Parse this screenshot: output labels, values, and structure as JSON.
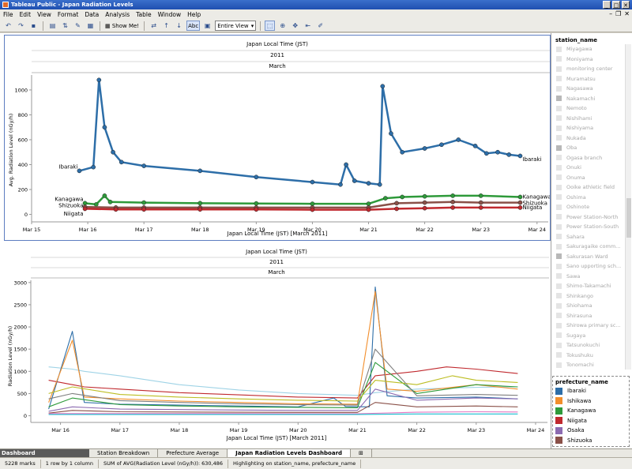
{
  "window": {
    "title": "Tableau Public - Japan Radiation Levels"
  },
  "menu": [
    "File",
    "Edit",
    "View",
    "Format",
    "Data",
    "Analysis",
    "Table",
    "Window",
    "Help"
  ],
  "toolbar": {
    "show_me": "Show Me!",
    "abc": "Abc",
    "fit": "Entire View"
  },
  "top_chart": {
    "header_title": "Japan Local Time (JST)",
    "header_year": "2011",
    "header_month": "March",
    "footer_title": "Japan Local Time (JST) [March 2011]",
    "y_label": "Avg. Radiation Level (nGy/h)"
  },
  "bottom_chart": {
    "header_title": "Japan Local Time (JST)",
    "header_year": "2011",
    "header_month": "March",
    "footer_title": "Japan Local Time (JST) [March 2011]",
    "y_label": "Radiation Level (nGy/h)"
  },
  "chart_data": [
    {
      "type": "line",
      "title": "",
      "xlabel": "Japan Local Time (JST) [March 2011]",
      "ylabel": "Avg. Radiation Level (nGy/h)",
      "x_ticks": [
        "Mar 15",
        "Mar 16",
        "Mar 17",
        "Mar 18",
        "Mar 19",
        "Mar 20",
        "Mar 21",
        "Mar 22",
        "Mar 23",
        "Mar 24"
      ],
      "y_ticks": [
        0,
        200,
        400,
        600,
        800,
        1000
      ],
      "ylim": [
        -60,
        1120
      ],
      "xlim": [
        15.0,
        24.2
      ],
      "grid": false,
      "series": [
        {
          "name": "Ibaraki",
          "color": "#2d6ea8",
          "points": [
            [
              15.85,
              350
            ],
            [
              16.1,
              380
            ],
            [
              16.2,
              1080
            ],
            [
              16.3,
              700
            ],
            [
              16.45,
              500
            ],
            [
              16.6,
              420
            ],
            [
              17,
              390
            ],
            [
              18,
              350
            ],
            [
              19,
              300
            ],
            [
              20,
              260
            ],
            [
              20.5,
              240
            ],
            [
              20.6,
              400
            ],
            [
              20.75,
              270
            ],
            [
              21,
              250
            ],
            [
              21.2,
              240
            ],
            [
              21.25,
              1030
            ],
            [
              21.4,
              650
            ],
            [
              21.6,
              500
            ],
            [
              22,
              530
            ],
            [
              22.3,
              560
            ],
            [
              22.6,
              600
            ],
            [
              22.9,
              550
            ],
            [
              23.1,
              490
            ],
            [
              23.3,
              500
            ],
            [
              23.5,
              480
            ],
            [
              23.7,
              470
            ]
          ]
        },
        {
          "name": "Kanagawa",
          "color": "#2e9a3a",
          "points": [
            [
              15.95,
              90
            ],
            [
              16.15,
              80
            ],
            [
              16.3,
              150
            ],
            [
              16.4,
              100
            ],
            [
              17,
              95
            ],
            [
              18,
              90
            ],
            [
              19,
              88
            ],
            [
              20,
              85
            ],
            [
              21,
              85
            ],
            [
              21.3,
              130
            ],
            [
              21.6,
              140
            ],
            [
              22,
              145
            ],
            [
              22.5,
              150
            ],
            [
              23,
              150
            ],
            [
              23.7,
              140
            ]
          ]
        },
        {
          "name": "Shizuoka",
          "color": "#8a5048",
          "points": [
            [
              15.95,
              60
            ],
            [
              16.5,
              55
            ],
            [
              17,
              55
            ],
            [
              18,
              55
            ],
            [
              19,
              55
            ],
            [
              20,
              55
            ],
            [
              21,
              55
            ],
            [
              21.5,
              90
            ],
            [
              22,
              95
            ],
            [
              22.5,
              100
            ],
            [
              23,
              95
            ],
            [
              23.7,
              95
            ]
          ]
        },
        {
          "name": "Niigata",
          "color": "#c0292e",
          "points": [
            [
              15.95,
              45
            ],
            [
              16.5,
              40
            ],
            [
              17,
              40
            ],
            [
              18,
              40
            ],
            [
              19,
              40
            ],
            [
              20,
              38
            ],
            [
              21,
              38
            ],
            [
              21.5,
              45
            ],
            [
              22,
              50
            ],
            [
              22.5,
              55
            ],
            [
              23,
              55
            ],
            [
              23.7,
              55
            ]
          ]
        }
      ],
      "labels": [
        {
          "text": "Ibaraki",
          "at": "start",
          "value": 380
        },
        {
          "text": "Kanagawa",
          "at": "start",
          "value": 120
        },
        {
          "text": "Shizuoka",
          "at": "start",
          "value": 70
        },
        {
          "text": "Niigata",
          "at": "start",
          "value": 5
        },
        {
          "text": "Ibaraki",
          "at": "end",
          "value": 440
        },
        {
          "text": "Kanagawa",
          "at": "end",
          "value": 140
        },
        {
          "text": "Shizuoka",
          "at": "end",
          "value": 90
        },
        {
          "text": "Niigata",
          "at": "end",
          "value": 55
        }
      ]
    },
    {
      "type": "line",
      "title": "",
      "xlabel": "Japan Local Time (JST) [March 2011]",
      "ylabel": "Radiation Level (nGy/h)",
      "x_ticks": [
        "Mar 16",
        "Mar 17",
        "Mar 18",
        "Mar 19",
        "Mar 20",
        "Mar 21",
        "Mar 22",
        "Mar 23",
        "Mar 24"
      ],
      "y_ticks": [
        0,
        500,
        1000,
        1500,
        2000,
        2500,
        3000
      ],
      "ylim": [
        -150,
        3050
      ],
      "xlim": [
        15.5,
        24.2
      ],
      "grid": false,
      "series": [
        {
          "color": "#9fd3e6",
          "points": [
            [
              15.8,
              1100
            ],
            [
              16.2,
              1050
            ],
            [
              16.4,
              1000
            ],
            [
              17,
              900
            ],
            [
              18,
              700
            ],
            [
              19,
              580
            ],
            [
              20,
              500
            ],
            [
              21,
              460
            ],
            [
              21.3,
              520
            ],
            [
              22,
              600
            ],
            [
              23,
              640
            ],
            [
              23.7,
              650
            ]
          ]
        },
        {
          "color": "#c0292e",
          "points": [
            [
              15.8,
              800
            ],
            [
              16.2,
              700
            ],
            [
              16.4,
              650
            ],
            [
              17,
              600
            ],
            [
              18,
              520
            ],
            [
              19,
              470
            ],
            [
              20,
              420
            ],
            [
              21,
              400
            ],
            [
              21.3,
              900
            ],
            [
              22,
              1000
            ],
            [
              22.5,
              1100
            ],
            [
              23,
              1050
            ],
            [
              23.7,
              950
            ]
          ]
        },
        {
          "color": "#2d6ea8",
          "points": [
            [
              15.8,
              150
            ],
            [
              16.2,
              1900
            ],
            [
              16.4,
              300
            ],
            [
              17,
              260
            ],
            [
              18,
              240
            ],
            [
              19,
              220
            ],
            [
              20,
              200
            ],
            [
              20.6,
              400
            ],
            [
              20.8,
              210
            ],
            [
              21.2,
              200
            ],
            [
              21.3,
              2900
            ],
            [
              21.5,
              450
            ],
            [
              22,
              400
            ],
            [
              23,
              420
            ],
            [
              23.7,
              380
            ]
          ]
        },
        {
          "color": "#f28e2b",
          "points": [
            [
              15.8,
              300
            ],
            [
              16.2,
              1700
            ],
            [
              16.4,
              420
            ],
            [
              17,
              380
            ],
            [
              18,
              330
            ],
            [
              19,
              300
            ],
            [
              20,
              270
            ],
            [
              21,
              260
            ],
            [
              21.3,
              2800
            ],
            [
              21.5,
              600
            ],
            [
              22,
              550
            ],
            [
              23,
              700
            ],
            [
              23.7,
              600
            ]
          ]
        },
        {
          "color": "#2e9a3a",
          "points": [
            [
              15.8,
              200
            ],
            [
              16.2,
              400
            ],
            [
              17,
              250
            ],
            [
              18,
              220
            ],
            [
              19,
              200
            ],
            [
              20,
              190
            ],
            [
              21,
              180
            ],
            [
              21.3,
              1200
            ],
            [
              22,
              500
            ],
            [
              22.5,
              600
            ],
            [
              23,
              700
            ],
            [
              23.7,
              650
            ]
          ]
        },
        {
          "color": "#8c6bb1",
          "points": [
            [
              15.8,
              100
            ],
            [
              16.2,
              200
            ],
            [
              17,
              150
            ],
            [
              18,
              140
            ],
            [
              19,
              130
            ],
            [
              20,
              120
            ],
            [
              21,
              120
            ],
            [
              21.3,
              600
            ],
            [
              22,
              350
            ],
            [
              23,
              400
            ],
            [
              23.7,
              380
            ]
          ]
        },
        {
          "color": "#8a5048",
          "points": [
            [
              15.8,
              60
            ],
            [
              16.2,
              120
            ],
            [
              17,
              90
            ],
            [
              18,
              85
            ],
            [
              19,
              80
            ],
            [
              20,
              75
            ],
            [
              21,
              75
            ],
            [
              21.3,
              300
            ],
            [
              22,
              200
            ],
            [
              23,
              220
            ],
            [
              23.7,
              200
            ]
          ]
        },
        {
          "color": "#e377c2",
          "points": [
            [
              15.8,
              50
            ],
            [
              17,
              50
            ],
            [
              18,
              50
            ],
            [
              19,
              50
            ],
            [
              20,
              45
            ],
            [
              21,
              45
            ],
            [
              22,
              80
            ],
            [
              23,
              90
            ],
            [
              23.7,
              85
            ]
          ]
        },
        {
          "color": "#bcbd22",
          "points": [
            [
              15.8,
              500
            ],
            [
              16.2,
              650
            ],
            [
              17,
              480
            ],
            [
              18,
              420
            ],
            [
              19,
              380
            ],
            [
              20,
              350
            ],
            [
              21,
              330
            ],
            [
              21.3,
              800
            ],
            [
              22,
              700
            ],
            [
              22.6,
              900
            ],
            [
              23,
              800
            ],
            [
              23.7,
              750
            ]
          ]
        },
        {
          "color": "#17becf",
          "points": [
            [
              15.8,
              30
            ],
            [
              17,
              30
            ],
            [
              19,
              30
            ],
            [
              21,
              30
            ],
            [
              22,
              40
            ],
            [
              23.7,
              40
            ]
          ]
        },
        {
          "color": "#7f7f7f",
          "points": [
            [
              15.8,
              380
            ],
            [
              16.2,
              500
            ],
            [
              17,
              340
            ],
            [
              18,
              300
            ],
            [
              19,
              270
            ],
            [
              20,
              250
            ],
            [
              21,
              240
            ],
            [
              21.3,
              1500
            ],
            [
              22,
              450
            ],
            [
              23,
              480
            ],
            [
              23.7,
              460
            ]
          ]
        }
      ]
    }
  ],
  "filter": {
    "header": "station_name",
    "items": [
      "Miyagawa",
      "Moniyama",
      "monitoring center",
      "Muramatsu",
      "Nagasawa",
      "Nakamachi",
      "Nemoto",
      "Nishihami",
      "Nishiyama",
      "Nukada",
      "Oba",
      "Ogasa branch",
      "Onuki",
      "Onuma",
      "Ooike athletic field",
      "Oshima",
      "Oshinote",
      "Power Station-North",
      "Power Station-South",
      "Sahara",
      "Sakuragaike comm...",
      "Sakurasan Ward",
      "Sano upporting sch...",
      "Sawa",
      "Shimo-Takamachi",
      "Shinkango",
      "Shiohama",
      "Shirasuna",
      "Shirowa primary sc...",
      "Sugaya",
      "Tatsunokuchi",
      "Tokushuku",
      "Tonomachi"
    ],
    "dark": [
      5,
      10,
      21
    ]
  },
  "legend": {
    "header": "prefecture_name",
    "items": [
      {
        "label": "Ibaraki",
        "color": "#2d6ea8"
      },
      {
        "label": "Ishikawa",
        "color": "#f28e2b"
      },
      {
        "label": "Kanagawa",
        "color": "#2e9a3a"
      },
      {
        "label": "Niigata",
        "color": "#c0292e"
      },
      {
        "label": "Osaka",
        "color": "#8c6bb1"
      },
      {
        "label": "Shizuoka",
        "color": "#8a5048"
      }
    ]
  },
  "tabs": {
    "dashboard_label": "Dashboard",
    "items": [
      "Station Breakdown",
      "Prefecture Average",
      "Japan Radiation Levels Dashboard"
    ],
    "active": 2
  },
  "status": {
    "marks": "5228 marks",
    "rows": "1 row by 1 column",
    "sum": "SUM of AVG(Radiation Level (nGy/h)): 630,486",
    "highlight": "Highlighting on station_name, prefecture_name"
  }
}
